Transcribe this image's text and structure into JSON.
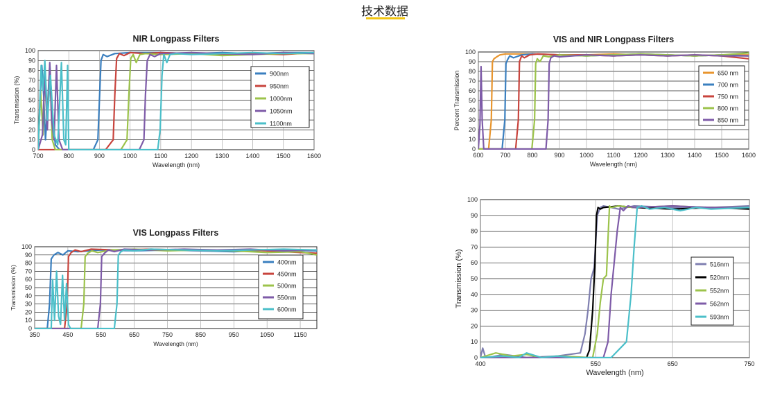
{
  "page": {
    "title": "技术数据",
    "accent_color": "#f2c511"
  },
  "chart_data": [
    {
      "id": "nir",
      "type": "line",
      "title": "NIR Longpass Filters",
      "xlabel": "Wavelength (nm)",
      "ylabel": "Transmission (%)",
      "xlim": [
        700,
        1600
      ],
      "ylim": [
        0,
        100
      ],
      "xticks": [
        700,
        800,
        900,
        1000,
        1100,
        1200,
        1300,
        1400,
        1500,
        1600
      ],
      "yticks": [
        0,
        10,
        20,
        30,
        40,
        50,
        60,
        70,
        80,
        90,
        100
      ],
      "grid": true,
      "legend_position": "right",
      "series": [
        {
          "name": "900nm",
          "color": "#3a7fbf",
          "x": [
            700,
            706,
            712,
            718,
            724,
            730,
            738,
            746,
            756,
            770,
            800,
            880,
            895,
            900,
            905,
            912,
            925,
            950,
            1000,
            1100,
            1200,
            1300,
            1400,
            1500,
            1600
          ],
          "y": [
            0,
            45,
            85,
            55,
            10,
            40,
            86,
            40,
            5,
            0,
            0,
            0,
            10,
            50,
            90,
            96,
            94,
            97,
            98,
            98,
            97,
            98,
            97,
            98,
            98
          ]
        },
        {
          "name": "950nm",
          "color": "#c8443d",
          "x": [
            700,
            920,
            945,
            950,
            956,
            965,
            980,
            1000,
            1050,
            1100,
            1200,
            1300,
            1400,
            1500,
            1600
          ],
          "y": [
            0,
            0,
            10,
            55,
            92,
            97,
            95,
            98,
            97,
            98,
            97,
            96,
            97,
            96,
            98
          ]
        },
        {
          "name": "1000nm",
          "color": "#9cc34b",
          "x": [
            700,
            708,
            716,
            722,
            730,
            738,
            746,
            756,
            770,
            800,
            970,
            990,
            996,
            1002,
            1010,
            1020,
            1032,
            1050,
            1100,
            1200,
            1300,
            1400,
            1500,
            1600
          ],
          "y": [
            0,
            60,
            15,
            80,
            30,
            85,
            10,
            0,
            0,
            0,
            0,
            10,
            55,
            92,
            96,
            88,
            96,
            97,
            96,
            97,
            95,
            96,
            97,
            97
          ]
        },
        {
          "name": "1050nm",
          "color": "#7e5ba8",
          "x": [
            700,
            714,
            722,
            730,
            738,
            744,
            752,
            760,
            768,
            780,
            800,
            1030,
            1045,
            1050,
            1056,
            1065,
            1080,
            1100,
            1200,
            1300,
            1400,
            1500,
            1600
          ],
          "y": [
            0,
            15,
            75,
            20,
            88,
            30,
            10,
            85,
            10,
            0,
            0,
            0,
            10,
            55,
            90,
            96,
            94,
            97,
            98,
            97,
            96,
            98,
            97
          ]
        },
        {
          "name": "1100nm",
          "color": "#4bbfc9",
          "x": [
            700,
            710,
            716,
            722,
            730,
            740,
            752,
            764,
            776,
            784,
            790,
            796,
            800,
            820,
            1090,
            1098,
            1104,
            1110,
            1120,
            1130,
            1150,
            1200,
            1300,
            1400,
            1500,
            1600
          ],
          "y": [
            0,
            85,
            60,
            90,
            30,
            75,
            15,
            5,
            88,
            10,
            5,
            85,
            0,
            0,
            0,
            20,
            75,
            96,
            88,
            96,
            97,
            96,
            97,
            98,
            97,
            98
          ]
        }
      ]
    },
    {
      "id": "vis-nir",
      "type": "line",
      "title": "VIS and NIR Longpass Filters",
      "xlabel": "Wavelength (nm)",
      "ylabel": "Percent Transmission",
      "xlim": [
        600,
        1600
      ],
      "ylim": [
        0,
        100
      ],
      "xticks": [
        600,
        700,
        800,
        900,
        1000,
        1100,
        1200,
        1300,
        1400,
        1500,
        1600
      ],
      "yticks": [
        0,
        10,
        20,
        30,
        40,
        50,
        60,
        70,
        80,
        90,
        100
      ],
      "grid": true,
      "legend_position": "right",
      "series": [
        {
          "name": "650 nm",
          "color": "#e8952e",
          "x": [
            600,
            638,
            648,
            652,
            658,
            668,
            680,
            700,
            800,
            900,
            1000,
            1100,
            1200,
            1300,
            1400,
            1500,
            1600
          ],
          "y": [
            0,
            0,
            30,
            90,
            93,
            95,
            97,
            98,
            98,
            97,
            97,
            98,
            97,
            97,
            96,
            97,
            97
          ]
        },
        {
          "name": "700 nm",
          "color": "#3a7fbf",
          "x": [
            600,
            688,
            698,
            702,
            708,
            716,
            730,
            760,
            800,
            900,
            1000,
            1100,
            1200,
            1300,
            1400,
            1500,
            1600
          ],
          "y": [
            0,
            0,
            30,
            88,
            92,
            96,
            94,
            97,
            98,
            97,
            96,
            97,
            98,
            97,
            96,
            97,
            96
          ]
        },
        {
          "name": "750 nm",
          "color": "#c8443d",
          "x": [
            600,
            738,
            748,
            752,
            760,
            770,
            790,
            820,
            900,
            1000,
            1100,
            1200,
            1300,
            1400,
            1500,
            1600
          ],
          "y": [
            0,
            0,
            30,
            90,
            96,
            94,
            97,
            98,
            97,
            97,
            96,
            97,
            96,
            97,
            96,
            93
          ]
        },
        {
          "name": "800 nm",
          "color": "#9cc34b",
          "x": [
            600,
            798,
            808,
            812,
            818,
            828,
            840,
            860,
            900,
            1000,
            1100,
            1200,
            1300,
            1400,
            1500,
            1600
          ],
          "y": [
            0,
            0,
            30,
            88,
            93,
            90,
            96,
            95,
            97,
            96,
            97,
            98,
            97,
            96,
            97,
            99
          ]
        },
        {
          "name": "850 nm",
          "color": "#7e5ba8",
          "x": [
            600,
            606,
            610,
            614,
            620,
            640,
            850,
            858,
            862,
            868,
            880,
            900,
            1000,
            1100,
            1200,
            1300,
            1400,
            1500,
            1600
          ],
          "y": [
            0,
            25,
            85,
            30,
            0,
            0,
            0,
            30,
            88,
            94,
            96,
            95,
            97,
            96,
            97,
            96,
            97,
            96,
            96
          ]
        }
      ]
    },
    {
      "id": "vis",
      "type": "line",
      "title": "VIS Longpass Filters",
      "xlabel": "Wavelength (nm)",
      "ylabel": "Transmission (%)",
      "xlim": [
        350,
        1200
      ],
      "ylim": [
        0,
        100
      ],
      "xticks": [
        350,
        450,
        550,
        650,
        750,
        850,
        950,
        1050,
        1150
      ],
      "yticks": [
        0,
        10,
        20,
        30,
        40,
        50,
        60,
        70,
        80,
        90,
        100
      ],
      "grid": true,
      "legend_position": "right",
      "series": [
        {
          "name": "400nm",
          "color": "#3a7fbf",
          "x": [
            350,
            388,
            395,
            400,
            408,
            420,
            435,
            450,
            480,
            550,
            650,
            750,
            850,
            950,
            1050,
            1200
          ],
          "y": [
            0,
            0,
            30,
            85,
            90,
            93,
            90,
            95,
            94,
            96,
            95,
            96,
            95,
            94,
            96,
            95
          ]
        },
        {
          "name": "450nm",
          "color": "#c8443d",
          "x": [
            350,
            440,
            448,
            452,
            460,
            472,
            490,
            520,
            600,
            700,
            800,
            900,
            1000,
            1100,
            1200
          ],
          "y": [
            0,
            0,
            30,
            88,
            93,
            96,
            94,
            97,
            96,
            97,
            96,
            95,
            96,
            94,
            92
          ]
        },
        {
          "name": "500nm",
          "color": "#9cc34b",
          "x": [
            350,
            490,
            498,
            502,
            510,
            522,
            540,
            580,
            650,
            750,
            850,
            950,
            1050,
            1150,
            1200
          ],
          "y": [
            0,
            0,
            30,
            88,
            92,
            95,
            93,
            96,
            97,
            95,
            96,
            95,
            93,
            94,
            90
          ]
        },
        {
          "name": "550nm",
          "color": "#7e5ba8",
          "x": [
            350,
            540,
            548,
            552,
            560,
            572,
            590,
            620,
            700,
            800,
            900,
            1000,
            1100,
            1200
          ],
          "y": [
            0,
            0,
            30,
            88,
            92,
            96,
            94,
            97,
            96,
            97,
            96,
            97,
            95,
            96
          ]
        },
        {
          "name": "600nm",
          "color": "#4bbfc9",
          "x": [
            350,
            400,
            404,
            410,
            416,
            422,
            428,
            434,
            440,
            446,
            452,
            458,
            590,
            598,
            602,
            610,
            620,
            650,
            700,
            800,
            900,
            1000,
            1100,
            1200
          ],
          "y": [
            0,
            0,
            60,
            10,
            70,
            15,
            5,
            65,
            10,
            55,
            5,
            0,
            0,
            30,
            90,
            94,
            96,
            95,
            97,
            96,
            95,
            96,
            97,
            96
          ]
        }
      ]
    },
    {
      "id": "visible",
      "type": "line",
      "title": "",
      "xlabel": "Wavelength (nm)",
      "ylabel": "Transmission (%)",
      "xlim": [
        400,
        750
      ],
      "ylim": [
        0,
        100
      ],
      "xticks": [
        400,
        550,
        650,
        750
      ],
      "yticks": [
        0,
        10,
        20,
        30,
        40,
        50,
        60,
        70,
        80,
        90,
        100
      ],
      "grid": true,
      "legend_position": "right",
      "series": [
        {
          "name": "516nm",
          "color": "#7f7fb0",
          "x": [
            400,
            403,
            406,
            410,
            430,
            460,
            500,
            530,
            536,
            540,
            544,
            548,
            552,
            556,
            560,
            580,
            600,
            650,
            700,
            750
          ],
          "y": [
            0,
            6,
            1,
            0,
            2,
            0,
            1,
            3,
            15,
            30,
            50,
            57,
            90,
            95,
            96,
            94,
            96,
            95,
            95,
            96
          ]
        },
        {
          "name": "520nm",
          "color": "#000000",
          "x": [
            400,
            500,
            538,
            542,
            546,
            549,
            551,
            553,
            556,
            560,
            580,
            600,
            650,
            700,
            750
          ],
          "y": [
            0,
            0,
            0,
            5,
            30,
            60,
            90,
            95,
            94,
            95,
            96,
            95,
            94,
            95,
            94
          ]
        },
        {
          "name": "552nm",
          "color": "#9cc34b",
          "x": [
            400,
            420,
            440,
            460,
            480,
            500,
            546,
            552,
            556,
            560,
            564,
            566,
            568,
            570,
            580,
            600,
            650,
            700,
            750
          ],
          "y": [
            0,
            3,
            1,
            2,
            0,
            1,
            0,
            15,
            35,
            50,
            52,
            75,
            96,
            95,
            96,
            95,
            96,
            95,
            95
          ]
        },
        {
          "name": "562nm",
          "color": "#7e5ba8",
          "x": [
            400,
            560,
            566,
            570,
            574,
            578,
            582,
            586,
            592,
            600,
            650,
            700,
            750
          ],
          "y": [
            0,
            0,
            10,
            40,
            60,
            80,
            95,
            93,
            96,
            95,
            96,
            95,
            95
          ]
        },
        {
          "name": "593nm",
          "color": "#4bbfc9",
          "x": [
            400,
            430,
            450,
            460,
            480,
            500,
            520,
            570,
            590,
            596,
            600,
            604,
            610,
            620,
            640,
            660,
            680,
            700,
            750
          ],
          "y": [
            0,
            1,
            0,
            3,
            0,
            1,
            0,
            0,
            10,
            40,
            70,
            95,
            96,
            94,
            95,
            93,
            95,
            94,
            95
          ]
        }
      ]
    }
  ]
}
